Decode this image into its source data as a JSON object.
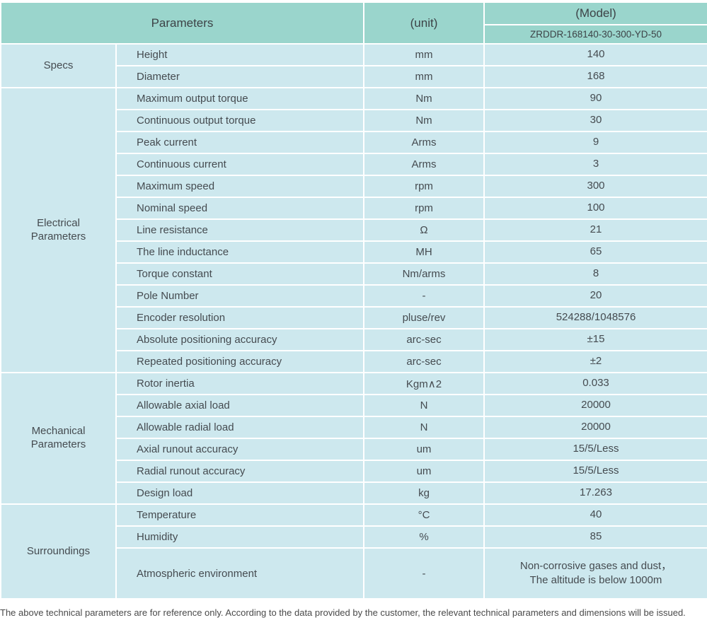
{
  "header": {
    "parameters": "Parameters",
    "unit": "(unit)",
    "model": "(Model)",
    "model_value": "ZRDDR-168140-30-300-YD-50"
  },
  "colors": {
    "header_bg": "#9ad5cc",
    "row_bg": "#cde8ee",
    "divider": "#ffffff",
    "text": "#454b50"
  },
  "sections": [
    {
      "category": "Specs",
      "rows": [
        {
          "name": "Height",
          "unit": "mm",
          "value": "140"
        },
        {
          "name": "Diameter",
          "unit": "mm",
          "value": "168"
        }
      ]
    },
    {
      "category": "Electrical Parameters",
      "rows": [
        {
          "name": "Maximum output torque",
          "unit": "Nm",
          "value": "90"
        },
        {
          "name": "Continuous output torque",
          "unit": "Nm",
          "value": "30"
        },
        {
          "name": "Peak current",
          "unit": "Arms",
          "value": "9"
        },
        {
          "name": "Continuous current",
          "unit": "Arms",
          "value": "3"
        },
        {
          "name": "Maximum speed",
          "unit": "rpm",
          "value": "300"
        },
        {
          "name": "Nominal speed",
          "unit": "rpm",
          "value": "100"
        },
        {
          "name": "Line resistance",
          "unit": "Ω",
          "value": "21"
        },
        {
          "name": "The line inductance",
          "unit": "MH",
          "value": "65"
        },
        {
          "name": "Torque constant",
          "unit": "Nm/arms",
          "value": "8"
        },
        {
          "name": "Pole Number",
          "unit": "-",
          "value": "20"
        },
        {
          "name": "Encoder resolution",
          "unit": "pluse/rev",
          "value": "524288/1048576"
        },
        {
          "name": "Absolute positioning accuracy",
          "unit": "arc-sec",
          "value": "±15"
        },
        {
          "name": "Repeated positioning accuracy",
          "unit": "arc-sec",
          "value": "±2"
        }
      ]
    },
    {
      "category": "Mechanical Parameters",
      "rows": [
        {
          "name": "Rotor inertia",
          "unit": "Kgm∧2",
          "value": "0.033"
        },
        {
          "name": "Allowable axial load",
          "unit": "N",
          "value": "20000"
        },
        {
          "name": "Allowable radial load",
          "unit": "N",
          "value": "20000"
        },
        {
          "name": "Axial runout accuracy",
          "unit": "um",
          "value": "15/5/Less"
        },
        {
          "name": "Radial runout accuracy",
          "unit": "um",
          "value": "15/5/Less"
        },
        {
          "name": "Design load",
          "unit": "kg",
          "value": "17.263"
        }
      ]
    },
    {
      "category": "Surroundings",
      "rows": [
        {
          "name": "Temperature",
          "unit": "°C",
          "value": "40"
        },
        {
          "name": "Humidity",
          "unit": "%",
          "value": "85"
        },
        {
          "name": "Atmospheric environment",
          "unit": "-",
          "value": "Non-corrosive gases and dust，\nThe altitude is below 1000m"
        }
      ]
    }
  ],
  "footer": {
    "note": "The above technical parameters are for reference only. According to the data provided by the customer, the relevant technical parameters and dimensions will be issued."
  }
}
